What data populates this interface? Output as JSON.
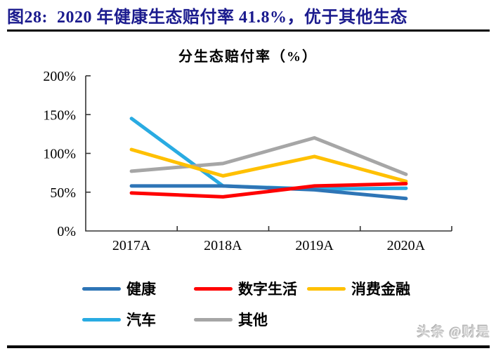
{
  "figure_header": {
    "title": "图28:  2020 年健康生态赔付率 41.8%，优于其他生态"
  },
  "watermark": "头条 @财是",
  "chart_data": {
    "type": "line",
    "title": "分生态赔付率（%）",
    "categories": [
      "2017A",
      "2018A",
      "2019A",
      "2020A"
    ],
    "series": [
      {
        "name": "健康",
        "color": "#2E75B6",
        "values": [
          58,
          58,
          53,
          41.8
        ]
      },
      {
        "name": "数字生活",
        "color": "#FF0000",
        "values": [
          49,
          44,
          58,
          61
        ]
      },
      {
        "name": "消费金融",
        "color": "#FFC000",
        "values": [
          105,
          71,
          96,
          64
        ]
      },
      {
        "name": "汽车",
        "color": "#29ABE2",
        "values": [
          145,
          58,
          54,
          55
        ]
      },
      {
        "name": "其他",
        "color": "#A6A6A6",
        "values": [
          77,
          87,
          120,
          73
        ]
      }
    ],
    "ylim": [
      0,
      200
    ],
    "yticks": [
      0,
      50,
      100,
      150,
      200
    ],
    "ytick_format": "percent",
    "xlabel": "",
    "ylabel": "",
    "grid": false,
    "legend_position": "bottom",
    "axis_color": "#333333"
  }
}
